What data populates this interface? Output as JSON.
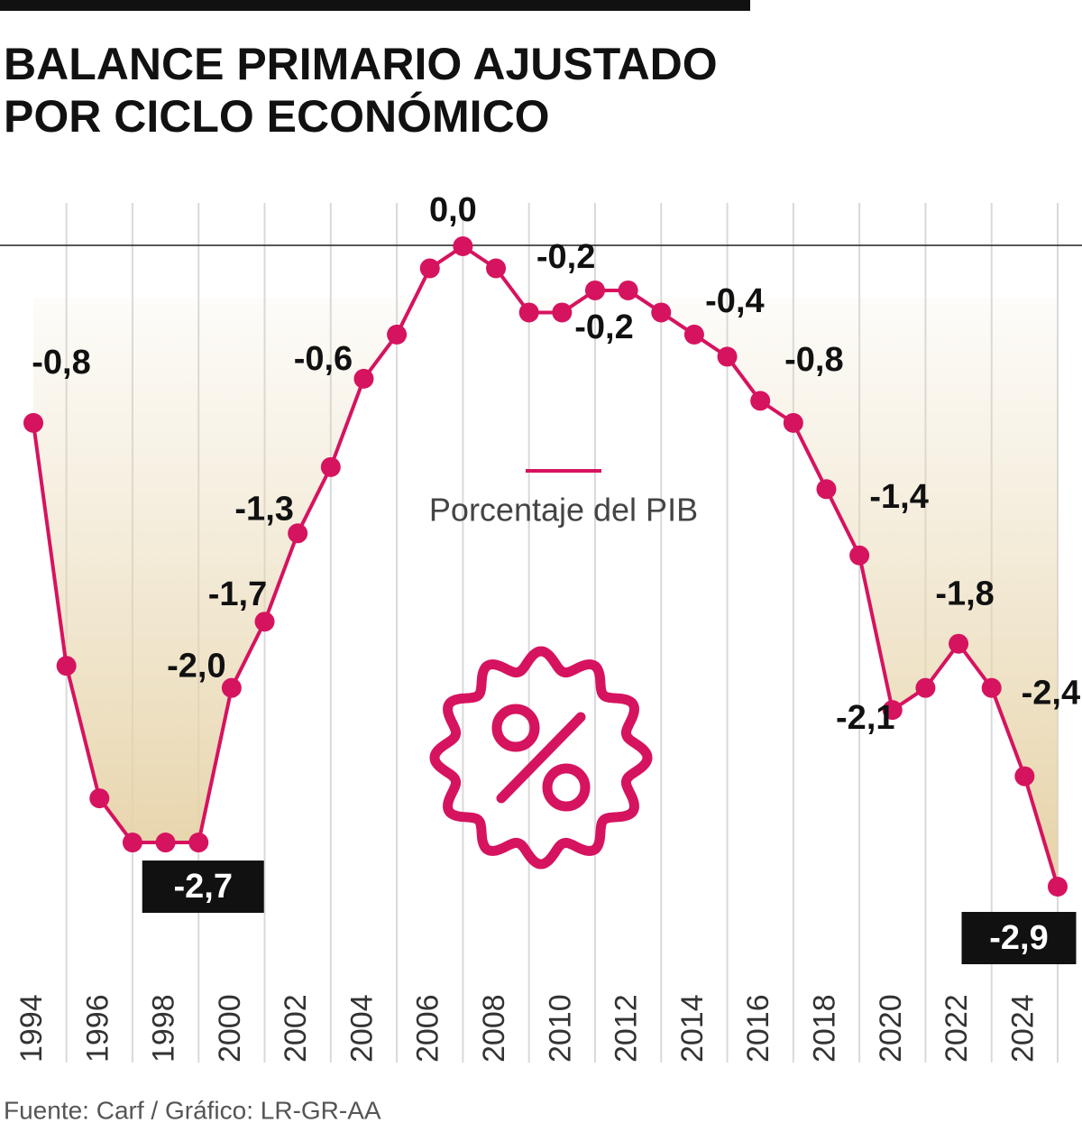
{
  "chart_data": {
    "type": "line",
    "title_lines": [
      "BALANCE PRIMARIO AJUSTADO",
      "POR CICLO ECONÓMICO"
    ],
    "x": [
      1994,
      1995,
      1996,
      1997,
      1998,
      1999,
      2000,
      2001,
      2002,
      2003,
      2004,
      2005,
      2006,
      2007,
      2008,
      2009,
      2010,
      2011,
      2012,
      2013,
      2014,
      2015,
      2016,
      2017,
      2018,
      2019,
      2020,
      2021,
      2022,
      2023,
      2024,
      2025
    ],
    "xticks": [
      1994,
      1996,
      1998,
      2000,
      2002,
      2004,
      2006,
      2008,
      2010,
      2012,
      2014,
      2016,
      2018,
      2020,
      2022,
      2024
    ],
    "series": [
      {
        "name": "Porcentaje del PIB",
        "color": "#d6135f",
        "values": [
          -0.8,
          -1.9,
          -2.5,
          -2.7,
          -2.7,
          -2.7,
          -2.0,
          -1.7,
          -1.3,
          -1.0,
          -0.6,
          -0.4,
          -0.1,
          0.0,
          -0.1,
          -0.3,
          -0.3,
          -0.2,
          -0.2,
          -0.3,
          -0.4,
          -0.5,
          -0.7,
          -0.8,
          -1.1,
          -1.4,
          -2.1,
          -2.0,
          -1.8,
          -2.0,
          -2.4,
          -2.9
        ],
        "value_labels": [
          "-0,8",
          null,
          null,
          null,
          null,
          "-2,7",
          "-2,0",
          "-1,7",
          "-1,3",
          null,
          "-0,6",
          null,
          null,
          "0,0",
          null,
          null,
          null,
          "-0,2",
          "-0,2",
          null,
          "-0,4",
          null,
          null,
          "-0,8",
          null,
          "-1,4",
          "-2,1",
          null,
          "-1,8",
          null,
          "-2,4",
          "-2,9"
        ]
      }
    ],
    "source": "Fuente: Carf / Gráfico: LR-GR-AA"
  }
}
